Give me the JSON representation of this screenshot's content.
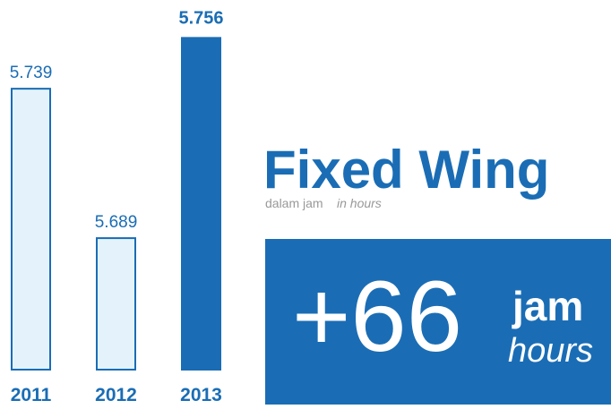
{
  "chart_data": {
    "type": "bar",
    "title": "Fixed Wing",
    "subtitle": "dalam jam",
    "subtitle_en": "in hours",
    "categories": [
      "2011",
      "2012",
      "2013"
    ],
    "values": [
      5.739,
      5.689,
      5.756
    ],
    "colors": [
      "#e4f3fb",
      "#e4f3fb",
      "#1a6db5"
    ],
    "edge_color": "#1a6db5",
    "ylim": [
      5.645,
      5.76
    ],
    "annotations": {
      "change": "+66",
      "unit": "jam",
      "unit_en": "hours"
    }
  }
}
